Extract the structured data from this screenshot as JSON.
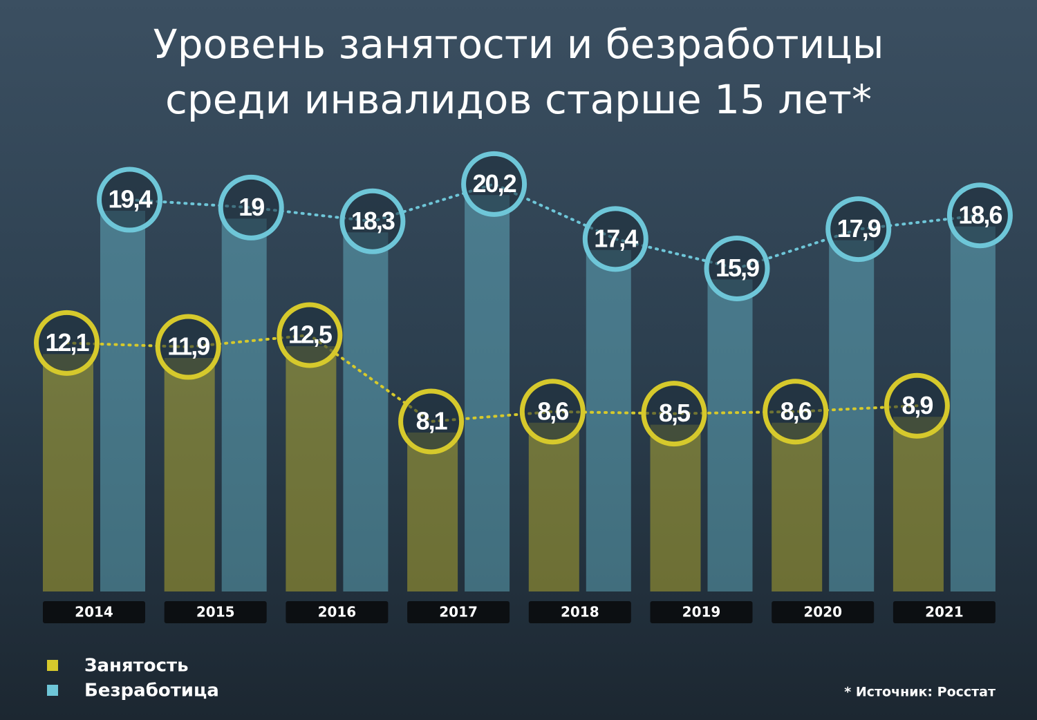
{
  "chart_data": {
    "type": "bar",
    "title": [
      "Уровень занятости и безработицы",
      "среди инвалидов старше 15 лет*"
    ],
    "categories": [
      "2014",
      "2015",
      "2016",
      "2017",
      "2018",
      "2019",
      "2020",
      "2021"
    ],
    "series": [
      {
        "name": "Занятость",
        "color": "#d6c92c",
        "values": [
          12.1,
          11.9,
          12.5,
          8.1,
          8.6,
          8.5,
          8.6,
          8.9
        ],
        "value_labels": [
          "12,1",
          "11,9",
          "12,5",
          "8,1",
          "8,6",
          "8,5",
          "8,6",
          "8,9"
        ]
      },
      {
        "name": "Безработица",
        "color": "#6ec6d8",
        "values": [
          19.4,
          19,
          18.3,
          20.2,
          17.4,
          15.9,
          17.9,
          18.6
        ],
        "value_labels": [
          "19,4",
          "19",
          "18,3",
          "20,2",
          "17,4",
          "15,9",
          "17,9",
          "18,6"
        ]
      }
    ],
    "source": "* Источник: Росстат"
  }
}
